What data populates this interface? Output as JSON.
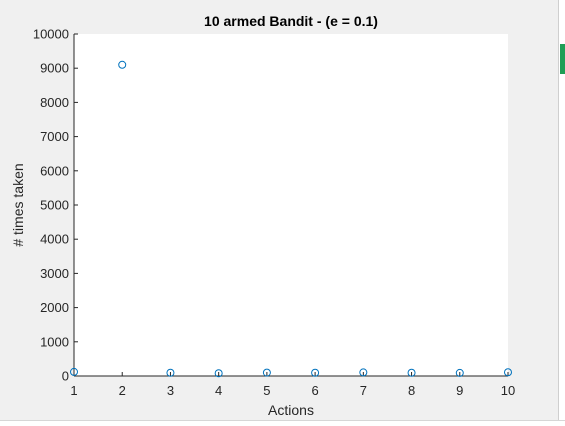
{
  "chart_data": {
    "type": "scatter",
    "title": "10 armed Bandit - (e = 0.1)",
    "xlabel": "Actions",
    "ylabel": "# times taken",
    "xlim": [
      1,
      10
    ],
    "ylim": [
      0,
      10000
    ],
    "xticks": [
      "1",
      "2",
      "3",
      "4",
      "5",
      "6",
      "7",
      "8",
      "9",
      "10"
    ],
    "yticks": [
      "0",
      "1000",
      "2000",
      "3000",
      "4000",
      "5000",
      "6000",
      "7000",
      "8000",
      "9000",
      "10000"
    ],
    "x": [
      1,
      2,
      3,
      4,
      5,
      6,
      7,
      8,
      9,
      10
    ],
    "y": [
      120,
      9100,
      95,
      80,
      100,
      95,
      105,
      95,
      90,
      110
    ],
    "grid": false,
    "marker": "open-circle",
    "marker_color": "#0072bd",
    "axes_color": "#262626",
    "plot_background": "#ffffff"
  }
}
